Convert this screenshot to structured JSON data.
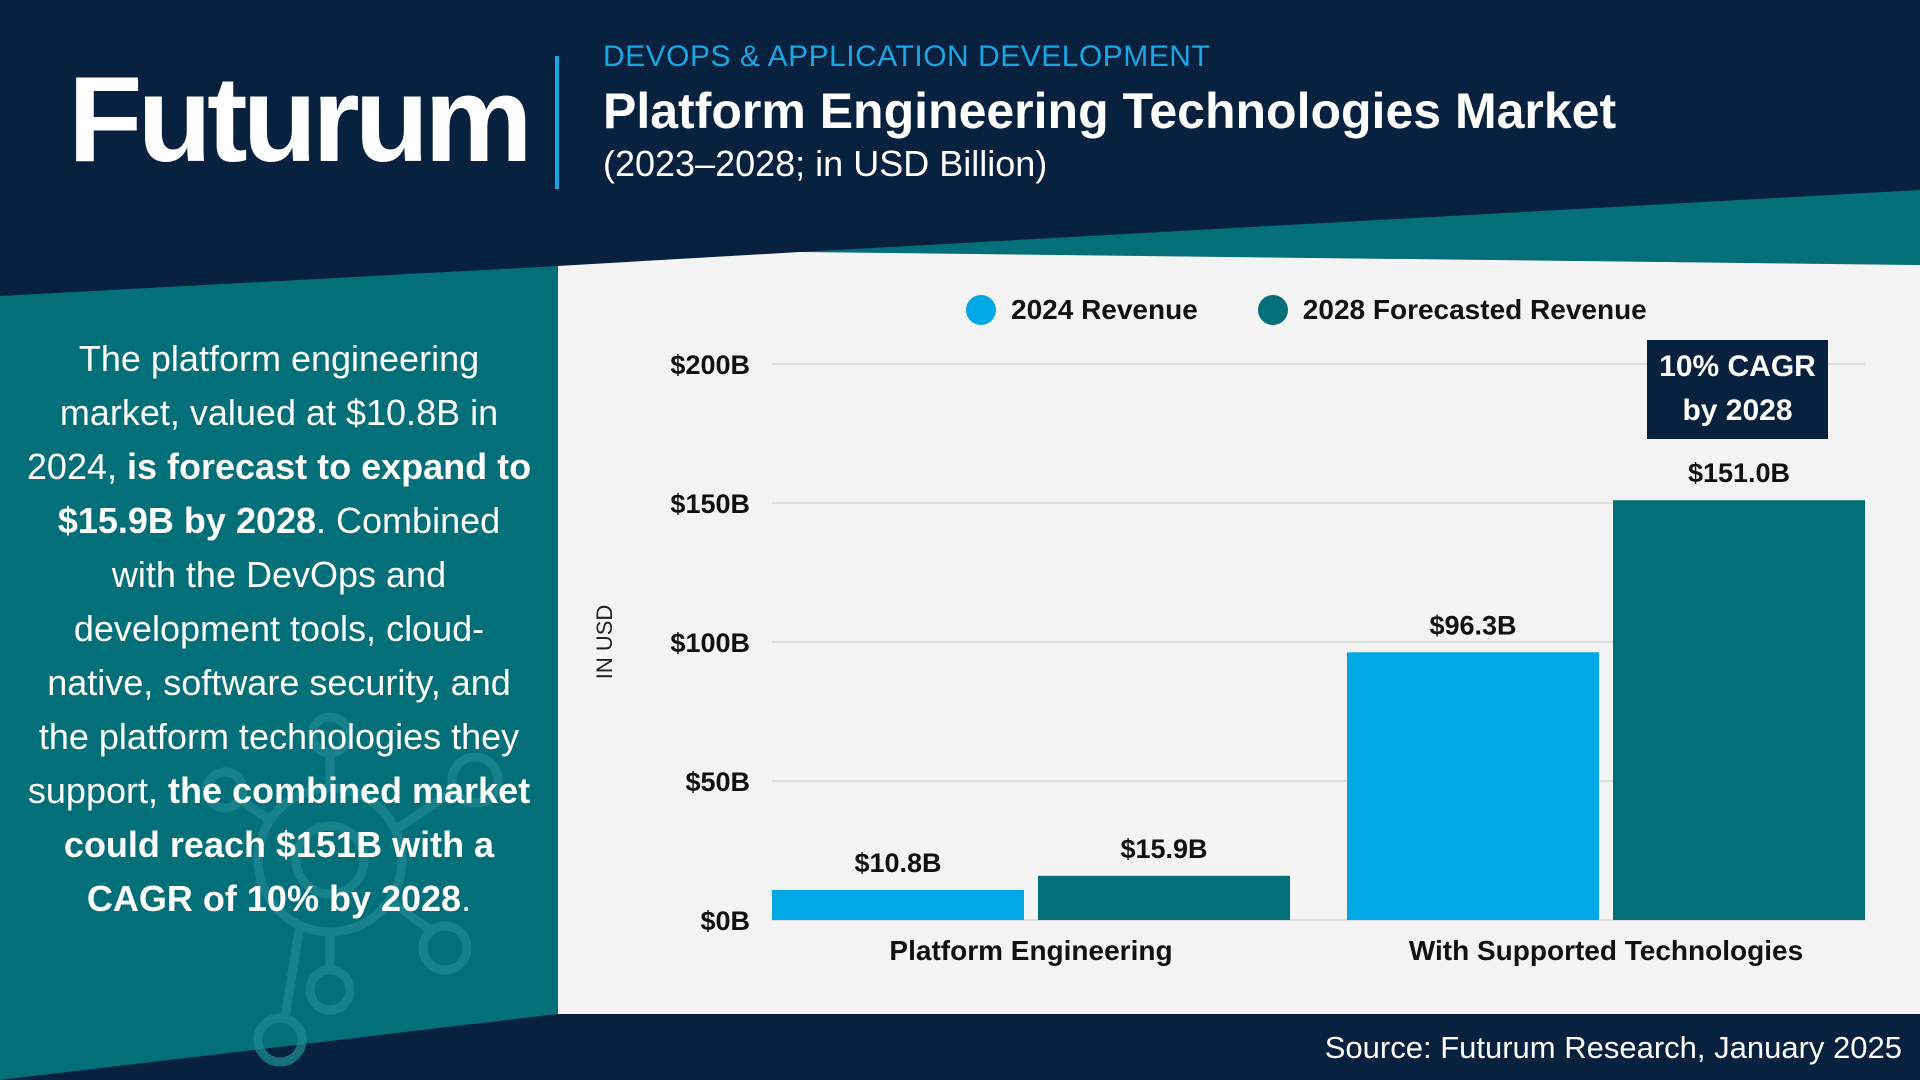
{
  "header": {
    "logo": "Futurum",
    "category": "DEVOPS & APPLICATION DEVELOPMENT",
    "title": "Platform Engineering Technologies Market",
    "subtitle": "(2023–2028; in USD Billion)"
  },
  "sidebar": {
    "t1": "The platform engineering market, valued at $10.8B in 2024, ",
    "b1": "is forecast to expand to $15.9B by 2028",
    "t2": ". Combined with the DevOps and development tools, cloud-native, software security, and the platform technologies they support, ",
    "b2": "the combined market could reach $151B with a CAGR of 10% by 2028",
    "t3": "."
  },
  "legend": {
    "series1": "2024 Revenue",
    "series2": "2028 Forecasted Revenue"
  },
  "callout": {
    "line1": "10% CAGR",
    "line2": "by 2028"
  },
  "footer": {
    "source": "Source: Futurum Research, January 2025"
  },
  "colors": {
    "navy": "#07213f",
    "teal": "#036f78",
    "light_blue": "#00a9e6",
    "accent_blue": "#1aa6e3",
    "chart_bg": "#f4f4f4"
  },
  "chart_data": {
    "type": "bar",
    "title": "Platform Engineering Technologies Market",
    "xlabel": "",
    "ylabel": "IN USD",
    "ylim": [
      0,
      200
    ],
    "yticks": [
      0,
      50,
      100,
      150,
      200
    ],
    "ytick_labels": [
      "$0B",
      "$50B",
      "$100B",
      "$150B",
      "$200B"
    ],
    "categories": [
      "Platform Engineering",
      "With Supported Technologies"
    ],
    "series": [
      {
        "name": "2024 Revenue",
        "color": "#00a9e6",
        "values": [
          10.8,
          96.3
        ],
        "labels": [
          "$10.8B",
          "$96.3B"
        ]
      },
      {
        "name": "2028 Forecasted Revenue",
        "color": "#036f78",
        "values": [
          15.9,
          151.0
        ],
        "labels": [
          "$15.9B",
          "$151.0B"
        ]
      }
    ]
  }
}
